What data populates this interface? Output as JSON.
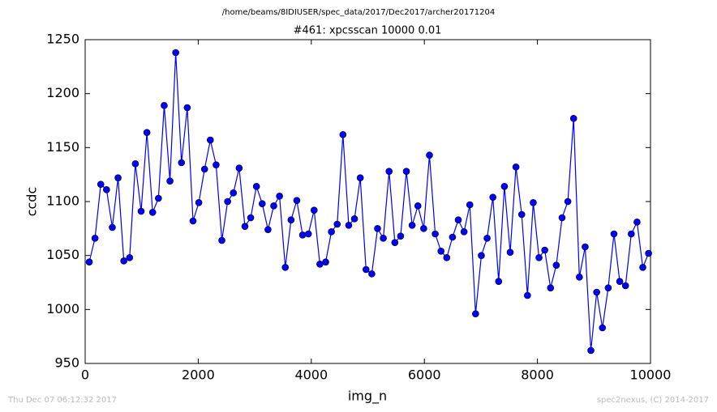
{
  "chart_data": {
    "type": "line",
    "suptitle": "/home/beams/8IDIUSER/spec_data/2017/Dec2017/archer20171204",
    "title": "#461: xpcsscan 10000 0.01",
    "xlabel": "img_n",
    "ylabel": "ccdc",
    "footer_left": "Thu Dec 07 06:12:32 2017",
    "footer_right": "spec2nexus, (C) 2014-2017",
    "color": "#0000ff",
    "x": [
      72,
      174,
      276,
      378,
      480,
      582,
      684,
      786,
      888,
      990,
      1092,
      1194,
      1296,
      1398,
      1500,
      1602,
      1704,
      1806,
      1908,
      2010,
      2112,
      2214,
      2316,
      2418,
      2520,
      2622,
      2724,
      2826,
      2928,
      3030,
      3132,
      3234,
      3336,
      3438,
      3540,
      3642,
      3744,
      3846,
      3948,
      4050,
      4152,
      4254,
      4356,
      4458,
      4560,
      4662,
      4764,
      4866,
      4968,
      5070,
      5172,
      5274,
      5376,
      5478,
      5580,
      5682,
      5784,
      5886,
      5988,
      6090,
      6192,
      6294,
      6396,
      6498,
      6600,
      6702,
      6804,
      6906,
      7008,
      7110,
      7212,
      7314,
      7416,
      7518,
      7620,
      7722,
      7824,
      7926,
      8028,
      8130,
      8232,
      8334,
      8436,
      8538,
      8640,
      8742,
      8844,
      8946,
      9048,
      9150,
      9252,
      9354,
      9456,
      9558,
      9660,
      9762,
      9864,
      9966
    ],
    "values": [
      1044,
      1066,
      1116,
      1111,
      1076,
      1122,
      1045,
      1048,
      1135,
      1091,
      1164,
      1090,
      1103,
      1189,
      1119,
      1238,
      1136,
      1187,
      1082,
      1099,
      1130,
      1157,
      1134,
      1064,
      1100,
      1108,
      1131,
      1077,
      1085,
      1114,
      1098,
      1074,
      1096,
      1105,
      1039,
      1083,
      1101,
      1069,
      1070,
      1092,
      1042,
      1044,
      1072,
      1079,
      1162,
      1078,
      1084,
      1122,
      1037,
      1033,
      1075,
      1066,
      1128,
      1062,
      1068,
      1128,
      1078,
      1096,
      1075,
      1143,
      1070,
      1054,
      1048,
      1067,
      1083,
      1072,
      1097,
      996,
      1050,
      1066,
      1104,
      1026,
      1114,
      1053,
      1132,
      1088,
      1013,
      1099,
      1048,
      1055,
      1020,
      1041,
      1085,
      1100,
      1177,
      1030,
      1058,
      962,
      1016,
      983,
      1020,
      1070,
      1026,
      1022,
      1070,
      1081,
      1039,
      1052
    ],
    "xlim": [
      0,
      10000
    ],
    "xticks": [
      0,
      2000,
      4000,
      6000,
      8000,
      10000
    ],
    "ylim": [
      950,
      1250
    ],
    "yticks": [
      950,
      1000,
      1050,
      1100,
      1150,
      1200,
      1250
    ]
  }
}
